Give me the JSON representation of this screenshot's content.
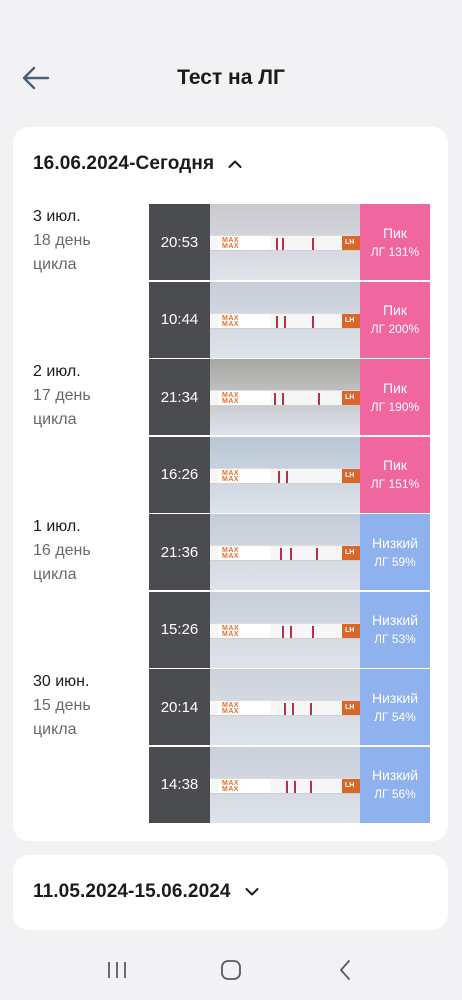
{
  "header": {
    "title": "Тест на ЛГ"
  },
  "sections": [
    {
      "range": "16.06.2024-Сегодня",
      "expanded": true,
      "days": [
        {
          "date": "3 июл.",
          "cycle_day": "18 день",
          "cycle_word": "цикла"
        },
        {
          "date": "2 июл.",
          "cycle_day": "17 день",
          "cycle_word": "цикла"
        },
        {
          "date": "1 июл.",
          "cycle_day": "16 день",
          "cycle_word": "цикла"
        },
        {
          "date": "30 июн.",
          "cycle_day": "15 день",
          "cycle_word": "цикла"
        }
      ],
      "tests": [
        {
          "time": "20:53",
          "status": "Пик",
          "lh": "ЛГ 131%",
          "color": "#f0679f",
          "max_label": "MAX",
          "tip_label": "LH"
        },
        {
          "time": "10:44",
          "status": "Пик",
          "lh": "ЛГ 200%",
          "color": "#f0679f",
          "max_label": "MAX",
          "tip_label": "LH"
        },
        {
          "time": "21:34",
          "status": "Пик",
          "lh": "ЛГ 190%",
          "color": "#f0679f",
          "max_label": "MAX",
          "tip_label": "LH"
        },
        {
          "time": "16:26",
          "status": "Пик",
          "lh": "ЛГ 151%",
          "color": "#f0679f",
          "max_label": "MAX",
          "tip_label": "LH"
        },
        {
          "time": "21:36",
          "status": "Низкий",
          "lh": "ЛГ 59%",
          "color": "#8fb1ee",
          "max_label": "MAX",
          "tip_label": "LH"
        },
        {
          "time": "15:26",
          "status": "Низкий",
          "lh": "ЛГ 53%",
          "color": "#8fb1ee",
          "max_label": "MAX",
          "tip_label": "LH"
        },
        {
          "time": "20:14",
          "status": "Низкий",
          "lh": "ЛГ 54%",
          "color": "#8fb1ee",
          "max_label": "MAX",
          "tip_label": "LH"
        },
        {
          "time": "14:38",
          "status": "Низкий",
          "lh": "ЛГ 56%",
          "color": "#8fb1ee",
          "max_label": "MAX",
          "tip_label": "LH"
        }
      ]
    },
    {
      "range": "11.05.2024-15.06.2024",
      "expanded": false
    }
  ],
  "navbar": {
    "icons": [
      "recent-apps-icon",
      "home-icon",
      "back-icon"
    ]
  }
}
